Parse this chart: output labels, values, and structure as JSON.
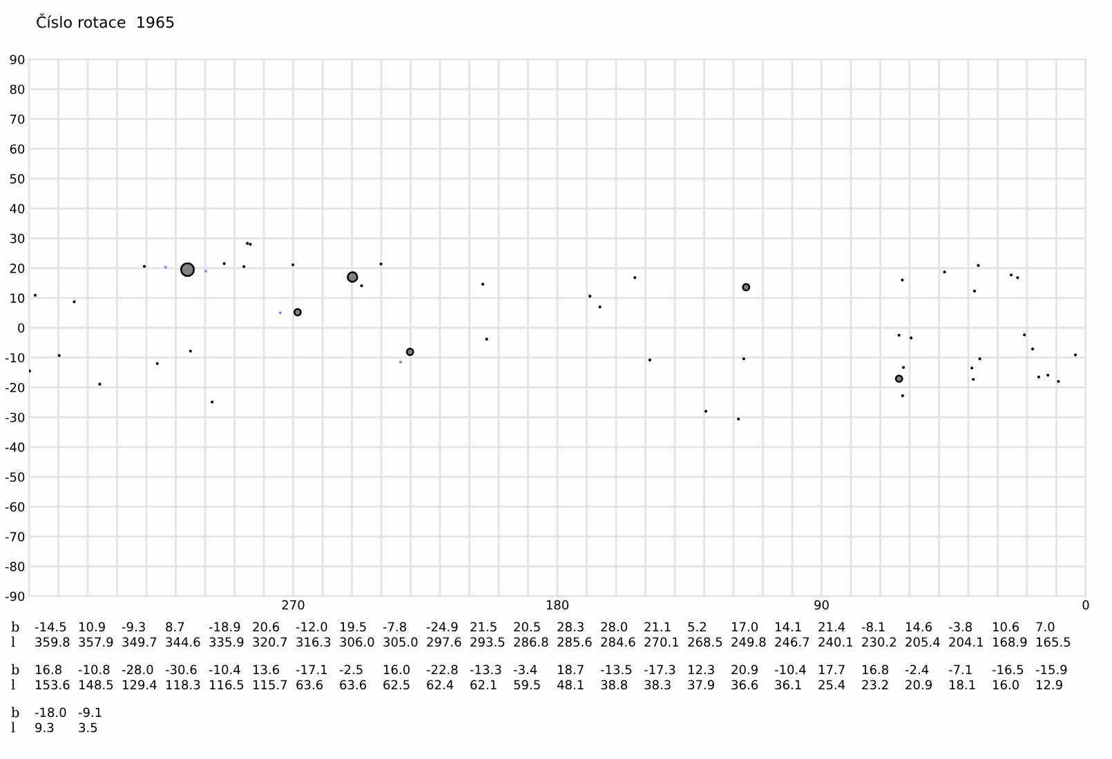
{
  "chart_data": {
    "type": "bubble",
    "title": "Číslo rotace  1965",
    "xlim": [
      360,
      0
    ],
    "xticks": [
      {
        "value": 360,
        "label": null
      },
      {
        "value": 350,
        "label": null
      },
      {
        "value": 340,
        "label": null
      },
      {
        "value": 330,
        "label": null
      },
      {
        "value": 320,
        "label": null
      },
      {
        "value": 310,
        "label": null
      },
      {
        "value": 300,
        "label": null
      },
      {
        "value": 290,
        "label": null
      },
      {
        "value": 280,
        "label": null
      },
      270,
      {
        "value": 260,
        "label": null
      },
      {
        "value": 250,
        "label": null
      },
      {
        "value": 240,
        "label": null
      },
      {
        "value": 230,
        "label": null
      },
      {
        "value": 220,
        "label": null
      },
      {
        "value": 210,
        "label": null
      },
      {
        "value": 200,
        "label": null
      },
      {
        "value": 190,
        "label": null
      },
      180,
      {
        "value": 170,
        "label": null
      },
      {
        "value": 160,
        "label": null
      },
      {
        "value": 150,
        "label": null
      },
      {
        "value": 140,
        "label": null
      },
      {
        "value": 130,
        "label": null
      },
      {
        "value": 120,
        "label": null
      },
      {
        "value": 110,
        "label": null
      },
      {
        "value": 100,
        "label": null
      },
      90,
      {
        "value": 80,
        "label": null
      },
      {
        "value": 70,
        "label": null
      },
      {
        "value": 60,
        "label": null
      },
      {
        "value": 50,
        "label": null
      },
      {
        "value": 40,
        "label": null
      },
      {
        "value": 30,
        "label": null
      },
      {
        "value": 20,
        "label": null
      },
      {
        "value": 10,
        "label": null
      },
      0
    ],
    "ylim": [
      -90,
      90
    ],
    "yticks": [
      -90,
      -80,
      -70,
      -60,
      -50,
      -40,
      -30,
      -20,
      -10,
      0,
      10,
      20,
      30,
      40,
      50,
      60,
      70,
      80,
      90
    ],
    "grid": true,
    "annotations": [
      "b",
      "l",
      "-14.5",
      "359.8",
      "10.9",
      "357.9",
      "-9.3",
      "349.7",
      "8.7",
      "344.6",
      "-18.9",
      "335.9",
      "20.6",
      "320.7",
      "-12.0",
      "316.3",
      "19.5",
      "306.0",
      "-7.8",
      "305.0",
      "-24.9",
      "297.6",
      "21.5",
      "293.5",
      "20.5",
      "286.8",
      "28.3",
      "285.6",
      "28.0",
      "284.6",
      "21.1",
      "270.1",
      "5.2",
      "268.5",
      "17.0",
      "249.8",
      "14.1",
      "246.7",
      "21.4",
      "240.1",
      "-8.1",
      "230.2",
      "14.6",
      "205.4",
      "-3.8",
      "204.1",
      "10.6",
      "168.9",
      "7.0",
      "165.5",
      "16.8",
      "153.6",
      "-10.8",
      "148.5",
      "-28.0",
      "129.4",
      "-30.6",
      "118.3",
      "-10.4",
      "116.5",
      "13.6",
      "115.7",
      "-17.1",
      "63.6",
      "-2.5",
      "63.6",
      "16.0",
      "62.5",
      "-22.8",
      "62.4",
      "-13.3",
      "62.1",
      "-3.4",
      "59.5",
      "18.7",
      "48.1",
      "-13.5",
      "38.8",
      "-17.3",
      "38.3",
      "12.3",
      "37.9",
      "20.9",
      "36.6",
      "-10.4",
      "36.1",
      "17.7",
      "25.4",
      "16.8",
      "23.2",
      "-2.4",
      "20.9",
      "-7.1",
      "18.1",
      "-16.5",
      "16.0",
      "-15.9",
      "12.9",
      "-18.0",
      "9.3",
      "-9.1",
      "3.5"
    ],
    "series": [
      {
        "x": [
          359.8,
          357.9,
          349.7,
          344.6,
          335.9,
          320.7,
          316.3,
          306.0,
          305.0,
          297.6,
          293.5,
          286.8,
          285.6,
          284.6,
          270.1,
          268.5,
          249.8,
          246.7,
          240.1,
          230.2,
          205.4,
          204.1,
          168.9,
          165.5,
          153.6,
          148.5,
          129.4,
          118.3,
          116.5,
          115.7,
          63.6,
          63.6,
          62.5,
          62.4,
          62.1,
          59.5,
          48.1,
          38.8,
          38.3,
          37.9,
          36.6,
          36.1,
          25.4,
          23.2,
          20.9,
          18.1,
          16.0,
          12.9,
          9.3,
          3.5
        ],
        "values": [
          -14.5,
          10.9,
          -9.3,
          8.7,
          -18.9,
          20.6,
          -12.0,
          19.5,
          -7.8,
          -24.9,
          21.5,
          20.5,
          28.3,
          28.0,
          21.1,
          5.2,
          17.0,
          14.1,
          21.4,
          -8.1,
          14.6,
          -3.8,
          10.6,
          7.0,
          16.8,
          -10.8,
          -28.0,
          -30.6,
          -10.4,
          13.6,
          -17.1,
          -2.5,
          16.0,
          -22.8,
          -13.3,
          -3.4,
          18.7,
          -13.5,
          -17.3,
          12.3,
          20.9,
          -10.4,
          17.7,
          16.8,
          -2.4,
          -7.1,
          -16.5,
          -15.9,
          -18.0,
          -9.1
        ],
        "sizes": [
          0.05,
          0.05,
          0.05,
          0.05,
          0.05,
          0.05,
          0.05,
          1,
          0.05,
          0.05,
          0.05,
          0.05,
          0.05,
          0.05,
          0.05,
          0.25,
          0.56,
          0.05,
          0.05,
          0.25,
          0.05,
          0.05,
          0.05,
          0.05,
          0.05,
          0.05,
          0.05,
          0.05,
          0.05,
          0.25,
          0.25,
          0.05,
          0.05,
          0.05,
          0.05,
          0.05,
          0.05,
          0.05,
          0.05,
          0.05,
          0.05,
          0.05,
          0.05,
          0.05,
          0.05,
          0.05,
          0.05,
          0.05,
          0.05,
          0.05
        ],
        "colors": [
          "#000000",
          "#000000",
          "#000000",
          "#000000",
          "#000000",
          "#000000",
          "#000000",
          "#808080",
          "#000000",
          "#000000",
          "#000000",
          "#000000",
          "#000000",
          "#000000",
          "#000000",
          "#808080",
          "#808080",
          "#000000",
          "#000000",
          "#808080",
          "#000000",
          "#000000",
          "#000000",
          "#000000",
          "#000000",
          "#000000",
          "#000000",
          "#000000",
          "#000000",
          "#808080",
          "#808080",
          "#000000",
          "#000000",
          "#000000",
          "#000000",
          "#000000",
          "#000000",
          "#000000",
          "#000000",
          "#000000",
          "#000000",
          "#000000",
          "#000000",
          "#000000",
          "#000000",
          "#000000",
          "#000000",
          "#000000",
          "#000000",
          "#000000"
        ]
      },
      {
        "x": [
          313.5,
          299.8,
          274.4,
          233.4
        ],
        "values": [
          20.3,
          19.0,
          5.0,
          -11.5
        ],
        "sizes": [
          0.05,
          0.05,
          0.05,
          0.05
        ],
        "color": "#8080ff"
      }
    ]
  }
}
